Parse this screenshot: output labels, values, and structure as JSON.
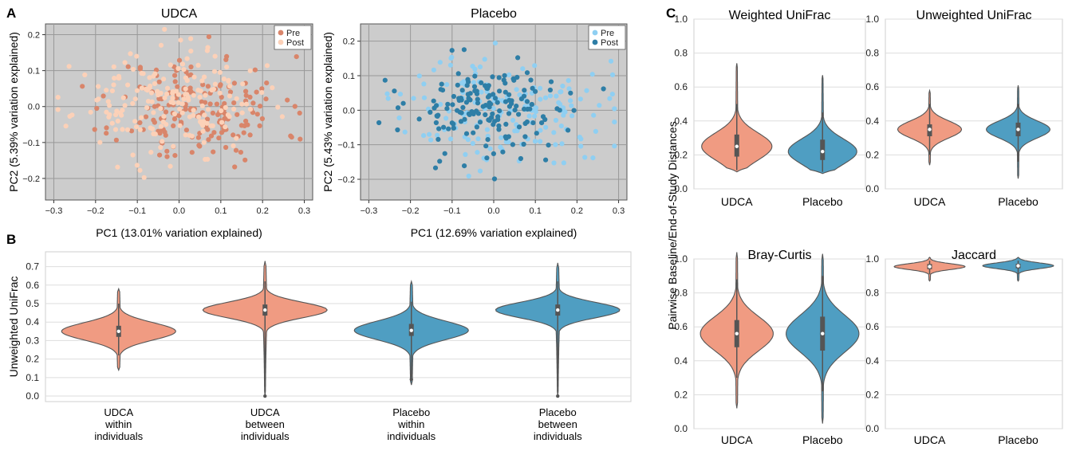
{
  "panel_letters": {
    "a": "A",
    "b": "B",
    "c": "C"
  },
  "colors": {
    "udca_pre": "#d9856a",
    "udca_post": "#fcd1b8",
    "placebo_pre": "#8fcff2",
    "placebo_post": "#2e7ea6",
    "udca_violin": "#f09b82",
    "placebo_violin": "#4f9ec2",
    "scatter_bg": "#cccccc",
    "scatter_grid": "#999999",
    "violin_outline": "#555555",
    "box": "#555555",
    "median": "#ffffff",
    "grid": "#dddddd"
  },
  "chart_data": [
    {
      "id": "udca_pcoa",
      "type": "scatter",
      "title": "UDCA",
      "xlabel": "PC1 (13.01% variation explained)",
      "ylabel": "PC2 (5.39% variation explained)",
      "xlim": [
        -0.32,
        0.32
      ],
      "ylim": [
        -0.26,
        0.23
      ],
      "xticks": [
        -0.3,
        -0.2,
        -0.1,
        0.0,
        0.1,
        0.2,
        0.3
      ],
      "xticklabels": [
        "−0.3",
        "−0.2",
        "−0.1",
        "0.0",
        "0.1",
        "0.2",
        "0.3"
      ],
      "yticks": [
        -0.2,
        -0.1,
        0.0,
        0.1,
        0.2
      ],
      "yticklabels": [
        "−0.2",
        "−0.1",
        "0.0",
        "0.1",
        "0.2"
      ],
      "grid": true,
      "legend": "top-right",
      "series": [
        {
          "name": "Pre",
          "color_key": "udca_pre",
          "center": [
            0.05,
            -0.01
          ],
          "spread": [
            0.1,
            0.075
          ],
          "n": 180,
          "seed": 11
        },
        {
          "name": "Post",
          "color_key": "udca_post",
          "center": [
            -0.03,
            0.01
          ],
          "spread": [
            0.11,
            0.07
          ],
          "n": 190,
          "seed": 23
        }
      ]
    },
    {
      "id": "placebo_pcoa",
      "type": "scatter",
      "title": "Placebo",
      "xlabel": "PC1 (12.69% variation explained)",
      "ylabel": "PC2 (5.43% variation explained)",
      "xlim": [
        -0.32,
        0.32
      ],
      "ylim": [
        -0.26,
        0.25
      ],
      "xticks": [
        -0.3,
        -0.2,
        -0.1,
        0.0,
        0.1,
        0.2,
        0.3
      ],
      "xticklabels": [
        "−0.3",
        "−0.2",
        "−0.1",
        "0.0",
        "0.1",
        "0.2",
        "0.3"
      ],
      "yticks": [
        -0.2,
        -0.1,
        0.0,
        0.1,
        0.2
      ],
      "yticklabels": [
        "−0.2",
        "−0.1",
        "0.0",
        "0.1",
        "0.2"
      ],
      "grid": true,
      "legend": "top-right",
      "series": [
        {
          "name": "Pre",
          "color_key": "placebo_pre",
          "center": [
            0.03,
            0.0
          ],
          "spread": [
            0.12,
            0.08
          ],
          "n": 160,
          "seed": 37
        },
        {
          "name": "Post",
          "color_key": "placebo_post",
          "center": [
            -0.01,
            0.0
          ],
          "spread": [
            0.1,
            0.07
          ],
          "n": 170,
          "seed": 53
        }
      ]
    },
    {
      "id": "within_between_violin",
      "type": "violin",
      "title": "",
      "ylabel": "Unweighted UniFrac",
      "ylim": [
        -0.03,
        0.78
      ],
      "yticks": [
        0.0,
        0.1,
        0.2,
        0.3,
        0.4,
        0.5,
        0.6,
        0.7
      ],
      "yticklabels": [
        "0.0",
        "0.1",
        "0.2",
        "0.3",
        "0.4",
        "0.5",
        "0.6",
        "0.7"
      ],
      "grid": true,
      "categories": [
        {
          "lines": [
            "UDCA",
            "within",
            "individuals"
          ],
          "color_key": "udca_violin",
          "min": 0.14,
          "max": 0.58,
          "median": 0.35,
          "q1": 0.32,
          "q3": 0.38,
          "wmin": 0.22,
          "wmax": 0.5,
          "sd": 0.047,
          "halfwidth": 0.78,
          "outliers": []
        },
        {
          "lines": [
            "UDCA",
            "between",
            "individuals"
          ],
          "color_key": "udca_violin",
          "min": 0.0,
          "max": 0.73,
          "median": 0.465,
          "q1": 0.435,
          "q3": 0.495,
          "wmin": 0.0,
          "wmax": 0.62,
          "sd": 0.042,
          "halfwidth": 0.85,
          "outliers": [
            0.0
          ]
        },
        {
          "lines": [
            "Placebo",
            "within",
            "individuals"
          ],
          "color_key": "placebo_violin",
          "min": 0.06,
          "max": 0.62,
          "median": 0.355,
          "q1": 0.325,
          "q3": 0.39,
          "wmin": 0.1,
          "wmax": 0.51,
          "sd": 0.05,
          "halfwidth": 0.78,
          "outliers": [
            0.09
          ]
        },
        {
          "lines": [
            "Placebo",
            "between",
            "individuals"
          ],
          "color_key": "placebo_violin",
          "min": 0.0,
          "max": 0.72,
          "median": 0.465,
          "q1": 0.435,
          "q3": 0.495,
          "wmin": 0.0,
          "wmax": 0.62,
          "sd": 0.042,
          "halfwidth": 0.85,
          "outliers": [
            0.0
          ]
        }
      ]
    },
    {
      "id": "weighted_unifrac",
      "type": "violin",
      "title": "Weighted UniFrac",
      "ylim": [
        0.0,
        1.0
      ],
      "yticks": [
        0.0,
        0.2,
        0.4,
        0.6,
        0.8,
        1.0
      ],
      "yticklabels": [
        "0.0",
        "0.2",
        "0.4",
        "0.6",
        "0.8",
        "1.0"
      ],
      "grid": true,
      "categories": [
        {
          "lines": [
            "UDCA"
          ],
          "color_key": "udca_violin",
          "min": 0.1,
          "max": 0.74,
          "median": 0.25,
          "q1": 0.19,
          "q3": 0.32,
          "wmin": 0.11,
          "wmax": 0.5,
          "sd": 0.08,
          "halfwidth": 0.82,
          "outliers": []
        },
        {
          "lines": [
            "Placebo"
          ],
          "color_key": "placebo_violin",
          "min": 0.09,
          "max": 0.67,
          "median": 0.22,
          "q1": 0.17,
          "q3": 0.29,
          "wmin": 0.1,
          "wmax": 0.45,
          "sd": 0.075,
          "halfwidth": 0.8,
          "outliers": []
        }
      ]
    },
    {
      "id": "unweighted_unifrac",
      "type": "violin",
      "title": "Unweighted UniFrac",
      "ylim": [
        0.0,
        1.0
      ],
      "yticks": [
        0.0,
        0.2,
        0.4,
        0.6,
        0.8,
        1.0
      ],
      "yticklabels": [
        "0.0",
        "0.2",
        "0.4",
        "0.6",
        "0.8",
        "1.0"
      ],
      "grid": true,
      "categories": [
        {
          "lines": [
            "UDCA"
          ],
          "color_key": "udca_violin",
          "min": 0.14,
          "max": 0.58,
          "median": 0.35,
          "q1": 0.31,
          "q3": 0.38,
          "wmin": 0.2,
          "wmax": 0.5,
          "sd": 0.05,
          "halfwidth": 0.72,
          "outliers": []
        },
        {
          "lines": [
            "Placebo"
          ],
          "color_key": "placebo_violin",
          "min": 0.06,
          "max": 0.61,
          "median": 0.35,
          "q1": 0.31,
          "q3": 0.39,
          "wmin": 0.16,
          "wmax": 0.5,
          "sd": 0.05,
          "halfwidth": 0.72,
          "outliers": []
        }
      ]
    },
    {
      "id": "bray_curtis",
      "type": "violin",
      "title": "Bray-Curtis",
      "ylim": [
        0.0,
        1.0
      ],
      "yticks": [
        0.0,
        0.2,
        0.4,
        0.6,
        0.8,
        1.0
      ],
      "yticklabels": [
        "0.0",
        "0.2",
        "0.4",
        "0.6",
        "0.8",
        "1.0"
      ],
      "grid": true,
      "categories": [
        {
          "lines": [
            "UDCA"
          ],
          "color_key": "udca_violin",
          "min": 0.12,
          "max": 1.04,
          "median": 0.56,
          "q1": 0.48,
          "q3": 0.64,
          "wmin": 0.3,
          "wmax": 0.88,
          "sd": 0.1,
          "halfwidth": 0.85,
          "outliers": []
        },
        {
          "lines": [
            "Placebo"
          ],
          "color_key": "placebo_violin",
          "min": 0.03,
          "max": 1.03,
          "median": 0.56,
          "q1": 0.46,
          "q3": 0.66,
          "wmin": 0.22,
          "wmax": 0.9,
          "sd": 0.11,
          "halfwidth": 0.85,
          "outliers": []
        }
      ]
    },
    {
      "id": "jaccard",
      "type": "violin",
      "title": "Jaccard",
      "ylim": [
        0.0,
        1.0
      ],
      "yticks": [
        0.0,
        0.2,
        0.4,
        0.6,
        0.8,
        1.0
      ],
      "yticklabels": [
        "0.0",
        "0.2",
        "0.4",
        "0.6",
        "0.8",
        "1.0"
      ],
      "grid": true,
      "categories": [
        {
          "lines": [
            "UDCA"
          ],
          "color_key": "udca_violin",
          "min": 0.87,
          "max": 1.01,
          "median": 0.955,
          "q1": 0.94,
          "q3": 0.97,
          "wmin": 0.91,
          "wmax": 0.99,
          "sd": 0.017,
          "halfwidth": 0.8,
          "outliers": []
        },
        {
          "lines": [
            "Placebo"
          ],
          "color_key": "placebo_violin",
          "min": 0.87,
          "max": 1.01,
          "median": 0.96,
          "q1": 0.945,
          "q3": 0.972,
          "wmin": 0.91,
          "wmax": 0.99,
          "sd": 0.017,
          "halfwidth": 0.8,
          "outliers": []
        }
      ]
    }
  ],
  "shared_ylabel_c": "Pairwise Baseline/End-of-Study Distances"
}
